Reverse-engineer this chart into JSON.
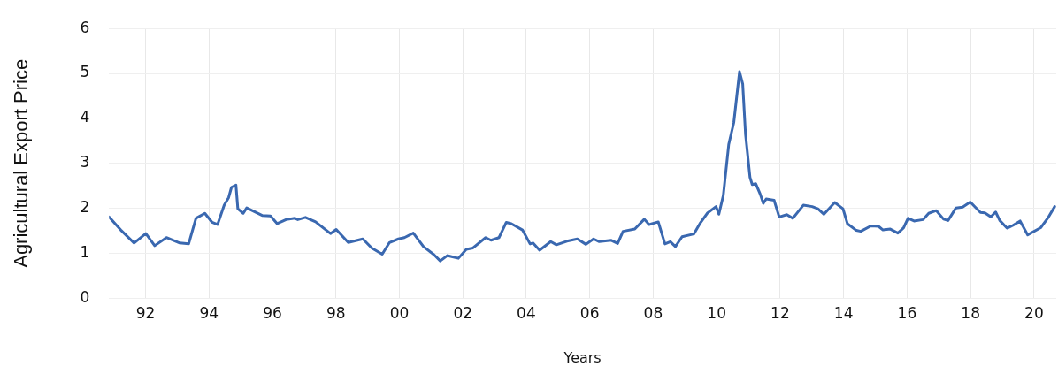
{
  "chart_data": {
    "type": "line",
    "xlabel": "Years",
    "ylabel": "Agricultural Export Price",
    "xlim": [
      1990.85,
      2020.7
    ],
    "xticks": [
      {
        "value": 1992,
        "label": "92"
      },
      {
        "value": 1994,
        "label": "94"
      },
      {
        "value": 1996,
        "label": "96"
      },
      {
        "value": 1998,
        "label": "98"
      },
      {
        "value": 2000,
        "label": "00"
      },
      {
        "value": 2002,
        "label": "02"
      },
      {
        "value": 2004,
        "label": "04"
      },
      {
        "value": 2006,
        "label": "06"
      },
      {
        "value": 2008,
        "label": "08"
      },
      {
        "value": 2010,
        "label": "10"
      },
      {
        "value": 2012,
        "label": "12"
      },
      {
        "value": 2014,
        "label": "14"
      },
      {
        "value": 2016,
        "label": "16"
      },
      {
        "value": 2018,
        "label": "18"
      },
      {
        "value": 2020,
        "label": "20"
      }
    ],
    "ylim": [
      0,
      6
    ],
    "yticks": [
      0,
      1,
      2,
      3,
      4,
      5,
      6
    ],
    "grid": true,
    "legend": false,
    "marker": "none",
    "line_style": "solid",
    "series": [
      {
        "color": "#3a68b0",
        "x": [
          1990.85,
          1991.22,
          1991.64,
          1992.01,
          1992.29,
          1992.66,
          1993.08,
          1993.36,
          1993.59,
          1993.87,
          1994.1,
          1994.27,
          1994.48,
          1994.62,
          1994.71,
          1994.85,
          1994.91,
          1995.08,
          1995.19,
          1995.69,
          1995.94,
          1996.15,
          1996.43,
          1996.71,
          1996.8,
          1997.04,
          1997.36,
          1997.83,
          1998.01,
          1998.39,
          1998.85,
          1999.13,
          1999.46,
          1999.69,
          1999.97,
          2000.16,
          2000.44,
          2000.76,
          2001.09,
          2001.29,
          2001.51,
          2001.86,
          2002.11,
          2002.32,
          2002.72,
          2002.89,
          2003.14,
          2003.37,
          2003.53,
          2003.88,
          2004.12,
          2004.21,
          2004.42,
          2004.77,
          2004.95,
          2005.28,
          2005.61,
          2005.88,
          2006.12,
          2006.3,
          2006.68,
          2006.88,
          2007.05,
          2007.42,
          2007.72,
          2007.87,
          2008.16,
          2008.37,
          2008.54,
          2008.7,
          2008.91,
          2009.28,
          2009.47,
          2009.7,
          2009.98,
          2010.07,
          2010.21,
          2010.38,
          2010.54,
          2010.72,
          2010.82,
          2010.91,
          2011.05,
          2011.12,
          2011.23,
          2011.37,
          2011.47,
          2011.56,
          2011.81,
          2011.97,
          2012.21,
          2012.4,
          2012.73,
          2013.01,
          2013.19,
          2013.38,
          2013.72,
          2013.98,
          2014.12,
          2014.4,
          2014.54,
          2014.86,
          2015.1,
          2015.24,
          2015.47,
          2015.71,
          2015.89,
          2016.03,
          2016.22,
          2016.5,
          2016.68,
          2016.92,
          2017.15,
          2017.29,
          2017.54,
          2017.75,
          2017.99,
          2018.31,
          2018.45,
          2018.64,
          2018.79,
          2018.92,
          2019.15,
          2019.33,
          2019.56,
          2019.8,
          2020.21,
          2020.45,
          2020.65
        ],
        "values": [
          1.81,
          1.52,
          1.23,
          1.44,
          1.17,
          1.35,
          1.23,
          1.21,
          1.78,
          1.89,
          1.69,
          1.64,
          2.07,
          2.24,
          2.47,
          2.52,
          1.99,
          1.89,
          2.01,
          1.84,
          1.83,
          1.66,
          1.75,
          1.78,
          1.75,
          1.8,
          1.7,
          1.44,
          1.53,
          1.24,
          1.32,
          1.12,
          0.98,
          1.24,
          1.32,
          1.35,
          1.45,
          1.15,
          0.97,
          0.83,
          0.95,
          0.89,
          1.09,
          1.12,
          1.35,
          1.29,
          1.35,
          1.69,
          1.66,
          1.52,
          1.21,
          1.23,
          1.07,
          1.26,
          1.19,
          1.27,
          1.32,
          1.2,
          1.32,
          1.26,
          1.29,
          1.22,
          1.49,
          1.54,
          1.76,
          1.64,
          1.7,
          1.21,
          1.26,
          1.15,
          1.37,
          1.43,
          1.66,
          1.89,
          2.04,
          1.87,
          2.29,
          3.42,
          3.91,
          5.04,
          4.77,
          3.64,
          2.69,
          2.53,
          2.55,
          2.32,
          2.11,
          2.21,
          2.18,
          1.81,
          1.86,
          1.78,
          2.07,
          2.04,
          1.99,
          1.87,
          2.13,
          1.99,
          1.66,
          1.51,
          1.49,
          1.61,
          1.6,
          1.52,
          1.54,
          1.45,
          1.57,
          1.78,
          1.72,
          1.75,
          1.89,
          1.95,
          1.76,
          1.73,
          2.01,
          2.03,
          2.14,
          1.91,
          1.9,
          1.81,
          1.92,
          1.73,
          1.56,
          1.62,
          1.72,
          1.41,
          1.57,
          1.8,
          2.04
        ]
      }
    ]
  }
}
